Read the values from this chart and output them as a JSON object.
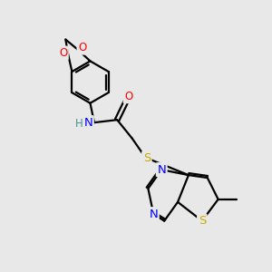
{
  "bg_color": "#e8e8e8",
  "bond_color": "#000000",
  "atom_colors": {
    "N": "#0000ff",
    "O": "#ff0000",
    "S": "#ccaa00",
    "H": "#4a9090"
  },
  "line_width": 1.6,
  "font_size": 8.5,
  "figsize": [
    3.0,
    3.0
  ],
  "dpi": 100
}
